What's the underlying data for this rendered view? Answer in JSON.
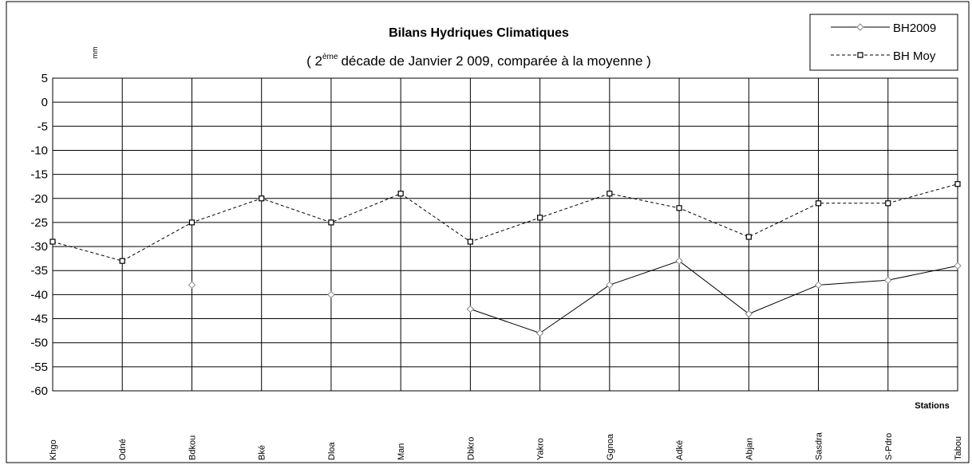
{
  "chart_data": {
    "type": "line",
    "title": "Bilans Hydriques Climatiques",
    "subtitle": [
      "( 2",
      "ème",
      "décade de Janvier  2 009, comparée à la moyenne )"
    ],
    "y_label": "mm",
    "x_label": "Stations",
    "categories": [
      "Khgo",
      "Odné",
      "Bdkou",
      "Bké",
      "Dloa",
      "Man",
      "Dbkro",
      "Yakro",
      "Ggnoa",
      "Adké",
      "Abjan",
      "Sasdra",
      "S-Pdro",
      "Tabou"
    ],
    "series": [
      {
        "name": "BH2009",
        "color": "#000000",
        "dash": "solid",
        "marker": "diamond",
        "values": [
          null,
          null,
          -38,
          null,
          -40,
          null,
          -43,
          -48,
          -38,
          -33,
          -44,
          -38,
          -37,
          -34
        ]
      },
      {
        "name": "BH Moy",
        "color": "#000000",
        "dash": "dashed",
        "marker": "square",
        "values": [
          -29,
          -33,
          -25,
          -20,
          -25,
          -19,
          -29,
          -24,
          -19,
          -22,
          -28,
          -21,
          -21,
          -17
        ]
      }
    ],
    "ylim": [
      -60,
      5
    ],
    "yticks": [
      5,
      0,
      -5,
      -10,
      -15,
      -20,
      -25,
      -30,
      -35,
      -40,
      -45,
      -50,
      -55,
      -60
    ],
    "grid": true,
    "legend": "top-right"
  }
}
